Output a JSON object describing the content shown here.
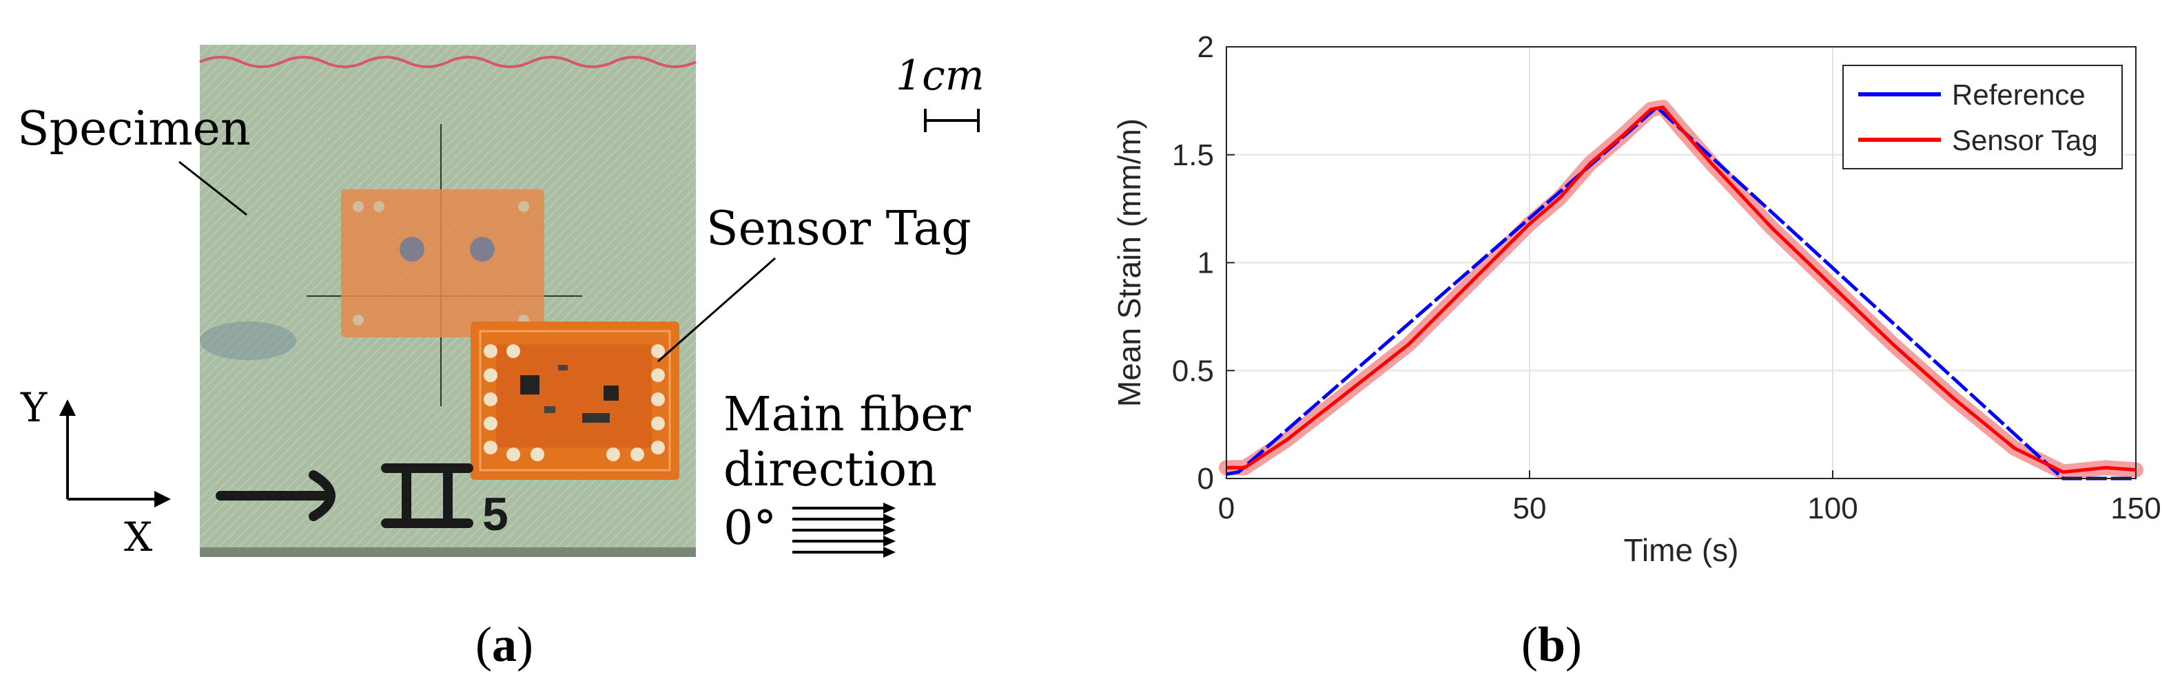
{
  "panel_a": {
    "caption_letter": "a",
    "labels": {
      "specimen": "Specimen",
      "sensor_tag": "Sensor Tag",
      "scale": "1cm",
      "fiber_line1": "Main fiber",
      "fiber_line2": "direction",
      "fiber_angle": "0°",
      "axis_y": "Y",
      "axis_x": "X",
      "specimen_marking": "→ II5"
    },
    "colors": {
      "specimen": "#a9bea3",
      "tag": "#e2731f",
      "stitch": "#d9556a"
    }
  },
  "panel_b": {
    "caption_letter": "b"
  },
  "chart_data": {
    "type": "line",
    "title": "",
    "xlabel": "Time (s)",
    "ylabel": "Mean Strain (mm/m)",
    "xlim": [
      0,
      150
    ],
    "ylim": [
      0,
      2
    ],
    "xticks": [
      0,
      50,
      100,
      150
    ],
    "yticks": [
      0,
      0.5,
      1,
      1.5,
      2
    ],
    "ytick_labels": [
      "0",
      "0.5",
      "1",
      "1.5",
      "2"
    ],
    "grid": true,
    "legend_position": "top-right",
    "series": [
      {
        "name": "Reference",
        "color": "#0000ff",
        "x": [
          0,
          2,
          71,
          138,
          150
        ],
        "y": [
          0.02,
          0.03,
          1.72,
          0.0,
          0.0
        ]
      },
      {
        "name": "Sensor Tag",
        "color": "#ff0000",
        "x": [
          0,
          3,
          10,
          20,
          30,
          40,
          50,
          55,
          60,
          65,
          70,
          72,
          75,
          80,
          90,
          100,
          110,
          120,
          130,
          138,
          145,
          150
        ],
        "y": [
          0.05,
          0.05,
          0.18,
          0.4,
          0.62,
          0.9,
          1.18,
          1.3,
          1.46,
          1.58,
          1.71,
          1.72,
          1.62,
          1.46,
          1.16,
          0.89,
          0.62,
          0.37,
          0.14,
          0.03,
          0.05,
          0.04
        ]
      }
    ]
  }
}
